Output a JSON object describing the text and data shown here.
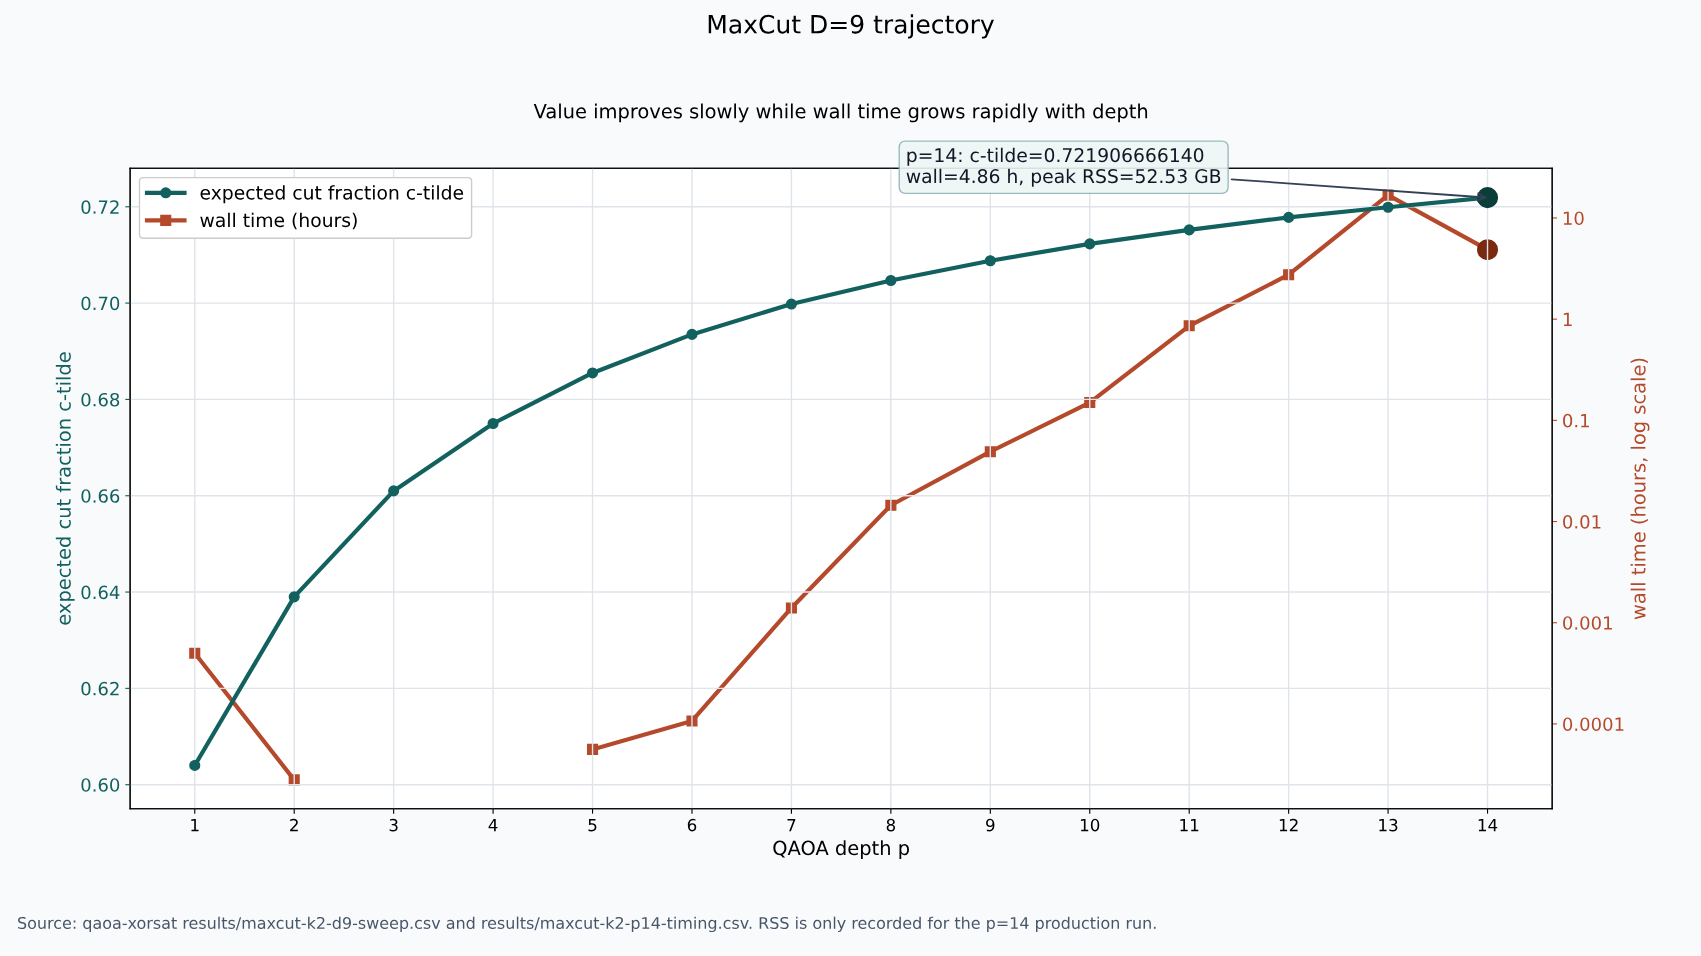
{
  "chart_data": {
    "type": "line",
    "title": "MaxCut D=9 trajectory",
    "subtitle": "Value improves slowly while wall time grows rapidly with depth",
    "xlabel": "QAOA depth p",
    "ylabel": "expected cut fraction c-tilde",
    "y2label": "wall time (hours, log scale)",
    "x": [
      1,
      2,
      3,
      4,
      5,
      6,
      7,
      8,
      9,
      10,
      11,
      12,
      13,
      14
    ],
    "xlim": [
      0.35,
      14.65
    ],
    "xticks": [
      1,
      2,
      3,
      4,
      5,
      6,
      7,
      8,
      9,
      10,
      11,
      12,
      13,
      14
    ],
    "ylim": [
      0.595,
      0.728
    ],
    "yticks": [
      {
        "value": 0.6,
        "label": "0.60"
      },
      {
        "value": 0.62,
        "label": "0.62"
      },
      {
        "value": 0.64,
        "label": "0.64"
      },
      {
        "value": 0.66,
        "label": "0.66"
      },
      {
        "value": 0.68,
        "label": "0.68"
      },
      {
        "value": 0.7,
        "label": "0.70"
      },
      {
        "value": 0.72,
        "label": "0.72"
      }
    ],
    "log": "y2",
    "y2lim": [
      1.45e-05,
      31
    ],
    "y2ticks": [
      {
        "value": 0.0001,
        "label": "0.0001"
      },
      0.001,
      0.01,
      0.1,
      1,
      10
    ],
    "series": [
      {
        "name": "expected cut fraction c-tilde",
        "color": "#12615f",
        "marker": "circle",
        "values": [
          0.604,
          0.639,
          0.661,
          0.675,
          0.6855,
          0.6935,
          0.6998,
          0.7047,
          0.7088,
          0.7123,
          0.7152,
          0.7178,
          0.7199,
          0.7219
        ]
      },
      {
        "name": "wall time (hours)",
        "color": "#b5492b",
        "marker": "square",
        "axis": "y2",
        "values": [
          0.0005,
          2.8e-05,
          null,
          null,
          5.6e-05,
          0.000107,
          0.0014,
          0.0145,
          0.049,
          0.15,
          0.86,
          2.75,
          16.8,
          4.86
        ]
      },
      {
        "type": "scatter",
        "color": "#0b3d3a",
        "x": [
          14
        ],
        "values": [
          0.7219
        ]
      },
      {
        "type": "scatter",
        "color": "#7a2a10",
        "axis": "y2",
        "x": [
          14
        ],
        "values": [
          4.86
        ]
      }
    ],
    "annotations": [
      {
        "text": "p=14: c-tilde=0.721906666140\nwall=4.86 h, peak RSS=52.53 GB",
        "x": 14,
        "y": 0.7219
      },
      "Source: qaoa-xorsat results/maxcut-k2-d9-sweep.csv and results/maxcut-k2-p14-timing.csv. RSS is only recorded for the p=14 production run."
    ],
    "grid": true,
    "legend": "top left"
  }
}
